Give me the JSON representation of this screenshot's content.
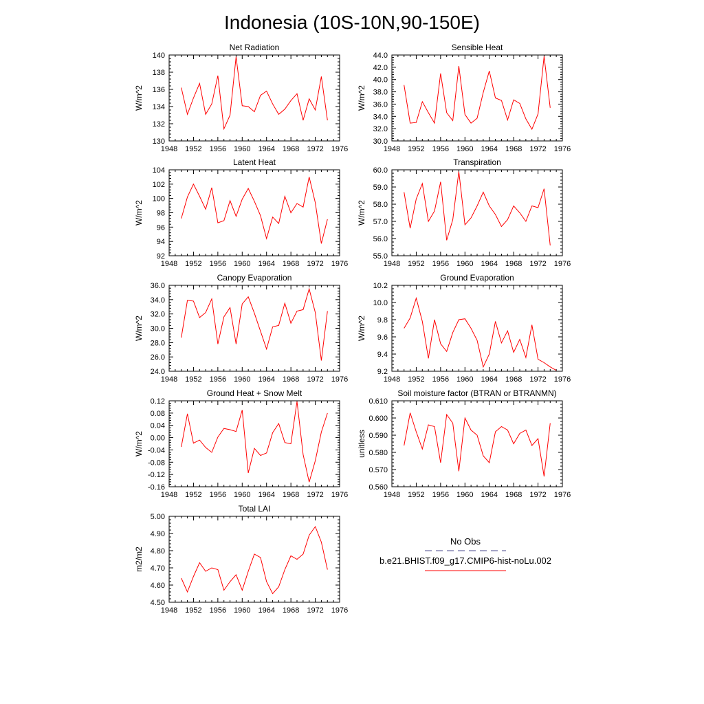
{
  "title": "Indonesia (10S-10N,90-150E)",
  "colors": {
    "model": "#ff0000",
    "obs": "#4a4a8c",
    "axis": "#000000"
  },
  "legend": {
    "obs_label": "No Obs",
    "model_label": "b.e21.BHIST.f09_g17.CMIP6-hist-noLu.002"
  },
  "chart_data": [
    {
      "type": "line",
      "title": "Net Radiation",
      "ylabel": "W/m^2",
      "xlim": [
        1948,
        1976
      ],
      "xticks": [
        "1948",
        "1952",
        "1956",
        "1960",
        "1964",
        "1968",
        "1972",
        "1976"
      ],
      "ylim": [
        130,
        140
      ],
      "yticks": [
        "130",
        "132",
        "134",
        "136",
        "138",
        "140"
      ],
      "series": [
        {
          "x": [
            1950,
            1951,
            1952,
            1953,
            1954,
            1955,
            1956,
            1957,
            1958,
            1959,
            1960,
            1961,
            1962,
            1963,
            1964,
            1965,
            1966,
            1967,
            1968,
            1969,
            1970,
            1971,
            1972,
            1973,
            1974
          ],
          "values": [
            136.2,
            133.1,
            135.0,
            136.7,
            133.1,
            134.3,
            137.6,
            131.4,
            133.0,
            139.8,
            134.1,
            134.0,
            133.4,
            135.3,
            135.8,
            134.3,
            133.1,
            133.7,
            134.7,
            135.5,
            132.4,
            134.9,
            133.6,
            137.5,
            132.4
          ]
        }
      ]
    },
    {
      "type": "line",
      "title": "Sensible Heat",
      "ylabel": "W/m^2",
      "xlim": [
        1948,
        1976
      ],
      "xticks": [
        "1948",
        "1952",
        "1956",
        "1960",
        "1964",
        "1968",
        "1972",
        "1976"
      ],
      "ylim": [
        30,
        44
      ],
      "yticks": [
        "30.0",
        "32.0",
        "34.0",
        "36.0",
        "38.0",
        "40.0",
        "42.0",
        "44.0"
      ],
      "series": [
        {
          "x": [
            1950,
            1951,
            1952,
            1953,
            1954,
            1955,
            1956,
            1957,
            1958,
            1959,
            1960,
            1961,
            1962,
            1963,
            1964,
            1965,
            1966,
            1967,
            1968,
            1969,
            1970,
            1971,
            1972,
            1973,
            1974
          ],
          "values": [
            39.1,
            32.9,
            33.0,
            36.4,
            34.6,
            32.9,
            41.0,
            34.6,
            33.3,
            42.2,
            34.3,
            32.9,
            33.7,
            37.9,
            41.4,
            37.0,
            36.6,
            33.4,
            36.7,
            36.1,
            33.6,
            31.9,
            34.4,
            43.8,
            35.4
          ]
        }
      ]
    },
    {
      "type": "line",
      "title": "Latent Heat",
      "ylabel": "W/m^2",
      "xlim": [
        1948,
        1976
      ],
      "xticks": [
        "1948",
        "1952",
        "1956",
        "1960",
        "1964",
        "1968",
        "1972",
        "1976"
      ],
      "ylim": [
        92,
        104
      ],
      "yticks": [
        "92",
        "94",
        "96",
        "98",
        "100",
        "102",
        "104"
      ],
      "series": [
        {
          "x": [
            1950,
            1951,
            1952,
            1953,
            1954,
            1955,
            1956,
            1957,
            1958,
            1959,
            1960,
            1961,
            1962,
            1963,
            1964,
            1965,
            1966,
            1967,
            1968,
            1969,
            1970,
            1971,
            1972,
            1973,
            1974
          ],
          "values": [
            97.2,
            100.2,
            102.0,
            100.3,
            98.5,
            101.5,
            96.6,
            96.9,
            99.7,
            97.5,
            99.9,
            101.4,
            99.6,
            97.6,
            94.4,
            97.4,
            96.5,
            100.3,
            98.0,
            99.3,
            98.8,
            103.0,
            99.4,
            93.7,
            97.1
          ]
        }
      ]
    },
    {
      "type": "line",
      "title": "Transpiration",
      "ylabel": "W/m^2",
      "xlim": [
        1948,
        1976
      ],
      "xticks": [
        "1948",
        "1952",
        "1956",
        "1960",
        "1964",
        "1968",
        "1972",
        "1976"
      ],
      "ylim": [
        55,
        60
      ],
      "yticks": [
        "55.0",
        "56.0",
        "57.0",
        "58.0",
        "59.0",
        "60.0"
      ],
      "series": [
        {
          "x": [
            1950,
            1951,
            1952,
            1953,
            1954,
            1955,
            1956,
            1957,
            1958,
            1959,
            1960,
            1961,
            1962,
            1963,
            1964,
            1965,
            1966,
            1967,
            1968,
            1969,
            1970,
            1971,
            1972,
            1973,
            1974
          ],
          "values": [
            58.7,
            56.6,
            58.3,
            59.2,
            57.0,
            57.6,
            59.3,
            55.9,
            57.1,
            59.9,
            56.8,
            57.2,
            57.9,
            58.7,
            57.9,
            57.4,
            56.7,
            57.1,
            57.9,
            57.5,
            57.0,
            57.9,
            57.8,
            58.9,
            55.6
          ]
        }
      ]
    },
    {
      "type": "line",
      "title": "Canopy Evaporation",
      "ylabel": "W/m^2",
      "xlim": [
        1948,
        1976
      ],
      "xticks": [
        "1948",
        "1952",
        "1956",
        "1960",
        "1964",
        "1968",
        "1972",
        "1976"
      ],
      "ylim": [
        24,
        36
      ],
      "yticks": [
        "24.0",
        "26.0",
        "28.0",
        "30.0",
        "32.0",
        "34.0",
        "36.0"
      ],
      "series": [
        {
          "x": [
            1950,
            1951,
            1952,
            1953,
            1954,
            1955,
            1956,
            1957,
            1958,
            1959,
            1960,
            1961,
            1962,
            1963,
            1964,
            1965,
            1966,
            1967,
            1968,
            1969,
            1970,
            1971,
            1972,
            1973,
            1974
          ],
          "values": [
            28.7,
            33.9,
            33.8,
            31.5,
            32.2,
            34.1,
            27.8,
            31.6,
            32.9,
            27.8,
            33.4,
            34.4,
            32.1,
            29.6,
            27.1,
            30.2,
            30.4,
            33.5,
            30.7,
            32.4,
            32.6,
            35.5,
            32.2,
            25.5,
            32.4
          ]
        }
      ]
    },
    {
      "type": "line",
      "title": "Ground Evaporation",
      "ylabel": "W/m^2",
      "xlim": [
        1948,
        1976
      ],
      "xticks": [
        "1948",
        "1952",
        "1956",
        "1960",
        "1964",
        "1968",
        "1972",
        "1976"
      ],
      "ylim": [
        9.2,
        10.2
      ],
      "yticks": [
        "9.2",
        "9.4",
        "9.6",
        "9.8",
        "10.0",
        "10.2"
      ],
      "series": [
        {
          "x": [
            1950,
            1951,
            1952,
            1953,
            1954,
            1955,
            1956,
            1957,
            1958,
            1959,
            1960,
            1961,
            1962,
            1963,
            1964,
            1965,
            1966,
            1967,
            1968,
            1969,
            1970,
            1971,
            1972,
            1973,
            1974,
            1975
          ],
          "values": [
            9.7,
            9.82,
            10.05,
            9.78,
            9.35,
            9.8,
            9.52,
            9.43,
            9.65,
            9.8,
            9.81,
            9.7,
            9.56,
            9.25,
            9.4,
            9.78,
            9.53,
            9.67,
            9.42,
            9.57,
            9.36,
            9.74,
            9.34,
            9.3,
            9.25,
            9.21
          ]
        }
      ]
    },
    {
      "type": "line",
      "title": "Ground Heat + Snow Melt",
      "ylabel": "W/m^2",
      "xlim": [
        1948,
        1976
      ],
      "xticks": [
        "1948",
        "1952",
        "1956",
        "1960",
        "1964",
        "1968",
        "1972",
        "1976"
      ],
      "ylim": [
        -0.16,
        0.12
      ],
      "yticks": [
        "-0.16",
        "-0.12",
        "-0.08",
        "-0.04",
        "0.00",
        "0.04",
        "0.08",
        "0.12"
      ],
      "series": [
        {
          "x": [
            1950,
            1951,
            1952,
            1953,
            1954,
            1955,
            1956,
            1957,
            1958,
            1959,
            1960,
            1961,
            1962,
            1963,
            1964,
            1965,
            1966,
            1967,
            1968,
            1969,
            1970,
            1971,
            1972,
            1973,
            1974
          ],
          "values": [
            -0.03,
            0.078,
            -0.018,
            -0.008,
            -0.032,
            -0.048,
            0.002,
            0.03,
            0.026,
            0.02,
            0.09,
            -0.115,
            -0.035,
            -0.058,
            -0.05,
            0.016,
            0.046,
            -0.016,
            -0.02,
            0.118,
            -0.055,
            -0.145,
            -0.075,
            0.018,
            0.08
          ]
        }
      ]
    },
    {
      "type": "line",
      "title": "Soil moisture factor (BTRAN or BTRANMN)",
      "ylabel": "unitless",
      "xlim": [
        1948,
        1976
      ],
      "xticks": [
        "1948",
        "1952",
        "1956",
        "1960",
        "1964",
        "1968",
        "1972",
        "1976"
      ],
      "ylim": [
        0.56,
        0.61
      ],
      "yticks": [
        "0.560",
        "0.570",
        "0.580",
        "0.590",
        "0.600",
        "0.610"
      ],
      "series": [
        {
          "x": [
            1950,
            1951,
            1952,
            1953,
            1954,
            1955,
            1956,
            1957,
            1958,
            1959,
            1960,
            1961,
            1962,
            1963,
            1964,
            1965,
            1966,
            1967,
            1968,
            1969,
            1970,
            1971,
            1972,
            1973,
            1974
          ],
          "values": [
            0.584,
            0.603,
            0.592,
            0.582,
            0.596,
            0.595,
            0.574,
            0.602,
            0.597,
            0.569,
            0.6,
            0.593,
            0.59,
            0.578,
            0.574,
            0.592,
            0.595,
            0.593,
            0.585,
            0.591,
            0.593,
            0.584,
            0.588,
            0.566,
            0.597
          ]
        }
      ]
    },
    {
      "type": "line",
      "title": "Total LAI",
      "ylabel": "m2/m2",
      "xlim": [
        1948,
        1976
      ],
      "xticks": [
        "1948",
        "1952",
        "1956",
        "1960",
        "1964",
        "1968",
        "1972",
        "1976"
      ],
      "ylim": [
        4.5,
        5.0
      ],
      "yticks": [
        "4.50",
        "4.60",
        "4.70",
        "4.80",
        "4.90",
        "5.00"
      ],
      "series": [
        {
          "x": [
            1950,
            1951,
            1952,
            1953,
            1954,
            1955,
            1956,
            1957,
            1958,
            1959,
            1960,
            1961,
            1962,
            1963,
            1964,
            1965,
            1966,
            1967,
            1968,
            1969,
            1970,
            1971,
            1972,
            1973,
            1974
          ],
          "values": [
            4.64,
            4.56,
            4.65,
            4.73,
            4.68,
            4.7,
            4.69,
            4.57,
            4.62,
            4.66,
            4.57,
            4.68,
            4.78,
            4.76,
            4.62,
            4.55,
            4.59,
            4.69,
            4.77,
            4.75,
            4.78,
            4.89,
            4.94,
            4.85,
            4.69
          ]
        }
      ]
    }
  ]
}
